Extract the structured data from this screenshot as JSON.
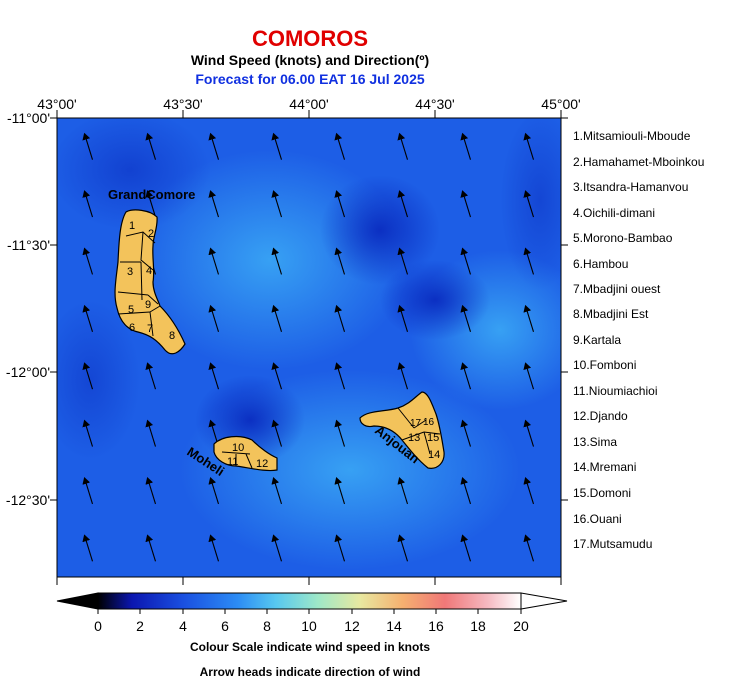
{
  "header": {
    "title": "COMOROS",
    "subtitle": "Wind Speed (knots) and Direction(º)",
    "forecast": "Forecast for  06.00 EAT 16 Jul 2025"
  },
  "axes": {
    "lon_labels": [
      "43°00'",
      "43°30'",
      "44°00'",
      "44°30'",
      "45°00'"
    ],
    "lat_labels": [
      "-11°00'",
      "-11°30'",
      "-12°00'",
      "-12°30'"
    ]
  },
  "islands": {
    "grand_comore": "GrandComore",
    "moheli": "Moheli",
    "anjouan": "Anjouan",
    "fill_color": "#f3c35b",
    "district_numbers": [
      "1",
      "2",
      "3",
      "4",
      "5",
      "6",
      "7",
      "8",
      "9",
      "10",
      "11",
      "12",
      "13",
      "14",
      "15",
      "16",
      "17"
    ]
  },
  "districts": [
    "1.Mitsamiouli-Mboude",
    "2.Hamahamet-Mboinkou",
    "3.Itsandra-Hamanvou",
    "4.Oichili-dimani",
    "5.Morono-Bambao",
    "6.Hambou",
    "7.Mbadjini ouest",
    "8.Mbadjini Est",
    "9.Kartala",
    "10.Fomboni",
    "11.Nioumiachioi",
    "12.Djando",
    "13.Sima",
    "14.Mremani",
    "15.Domoni",
    "16.Ouani",
    "17.Mutsamudu"
  ],
  "colorbar": {
    "ticks": [
      "0",
      "2",
      "4",
      "6",
      "8",
      "10",
      "12",
      "14",
      "16",
      "18",
      "20"
    ],
    "colors": [
      "#000000",
      "#0d1fc8",
      "#1a4fe0",
      "#2c8cf5",
      "#57c8f0",
      "#9ee8c8",
      "#e8e8a0",
      "#f5b070",
      "#f07878",
      "#f5b8c0",
      "#ffffff"
    ]
  },
  "notes": {
    "scale": "Colour Scale indicate wind speed in knots",
    "arrows": "Arrow heads indicate direction of wind"
  },
  "wind_arrows": {
    "direction": "toward north-north-west",
    "grid_cols": 8,
    "grid_rows": 8
  }
}
